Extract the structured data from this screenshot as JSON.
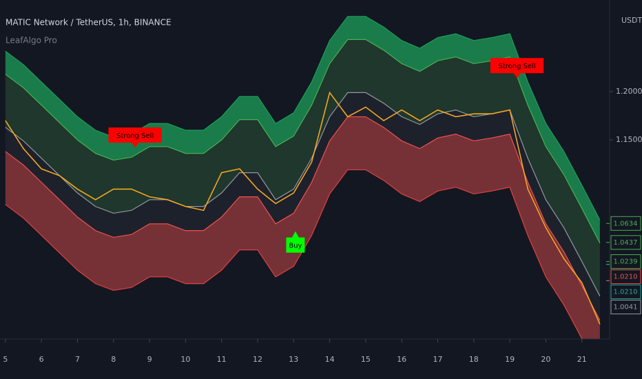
{
  "chart_data": {
    "type": "band-line",
    "title": "MATIC Network / TetherUS, 1h, BINANCE",
    "subtitle": "LeafAlgo Pro",
    "y_axis_label": "USDT",
    "x": [
      5,
      5.5,
      6,
      6.5,
      7,
      7.5,
      8,
      8.5,
      9,
      9.5,
      10,
      10.5,
      11,
      11.5,
      12,
      12.5,
      13,
      13.5,
      14,
      14.5,
      15,
      15.5,
      16,
      16.5,
      17,
      17.5,
      18,
      18.5,
      19,
      19.5,
      20,
      20.5,
      21,
      21.5
    ],
    "xlim": [
      4.85,
      21.77
    ],
    "xticks": [
      5,
      6,
      7,
      8,
      9,
      10,
      11,
      12,
      13,
      14,
      15,
      16,
      17,
      18,
      19,
      20,
      21
    ],
    "ylim": [
      0.9436,
      1.295
    ],
    "yticks": [
      {
        "value": 1.15,
        "label": "1.1500"
      },
      {
        "value": 1.2,
        "label": "1.2000"
      }
    ],
    "series": [
      {
        "color": "#1e9e5a",
        "values": [
          1.242,
          1.228,
          1.21,
          1.192,
          1.174,
          1.16,
          1.153,
          1.156,
          1.167,
          1.167,
          1.16,
          1.16,
          1.174,
          1.195,
          1.195,
          1.167,
          1.178,
          1.21,
          1.253,
          1.278,
          1.278,
          1.267,
          1.253,
          1.245,
          1.256,
          1.26,
          1.253,
          1.256,
          1.26,
          1.21,
          1.167,
          1.138,
          1.103,
          1.067
        ]
      },
      {
        "color": "#4caf50",
        "values": [
          1.218,
          1.204,
          1.186,
          1.168,
          1.15,
          1.136,
          1.129,
          1.132,
          1.143,
          1.143,
          1.136,
          1.136,
          1.15,
          1.171,
          1.171,
          1.143,
          1.154,
          1.186,
          1.229,
          1.254,
          1.254,
          1.243,
          1.229,
          1.221,
          1.232,
          1.236,
          1.229,
          1.232,
          1.236,
          1.186,
          1.143,
          1.114,
          1.079,
          1.043
        ]
      },
      {
        "color": "#9598a1",
        "values": [
          1.163,
          1.149,
          1.131,
          1.113,
          1.095,
          1.081,
          1.074,
          1.077,
          1.088,
          1.088,
          1.081,
          1.081,
          1.095,
          1.116,
          1.116,
          1.088,
          1.099,
          1.131,
          1.174,
          1.199,
          1.199,
          1.188,
          1.174,
          1.166,
          1.177,
          1.181,
          1.174,
          1.177,
          1.181,
          1.131,
          1.088,
          1.059,
          1.024,
          0.988
        ]
      },
      {
        "color": "#ef5350",
        "values": [
          1.138,
          1.124,
          1.106,
          1.088,
          1.07,
          1.056,
          1.049,
          1.052,
          1.063,
          1.063,
          1.056,
          1.056,
          1.07,
          1.091,
          1.091,
          1.063,
          1.074,
          1.106,
          1.149,
          1.174,
          1.174,
          1.163,
          1.149,
          1.141,
          1.152,
          1.156,
          1.149,
          1.152,
          1.156,
          1.106,
          1.063,
          1.034,
          0.999,
          0.963
        ]
      },
      {
        "color": "#e04040",
        "values": [
          1.083,
          1.069,
          1.051,
          1.033,
          1.015,
          1.001,
          0.994,
          0.997,
          1.008,
          1.008,
          1.001,
          1.001,
          1.015,
          1.036,
          1.036,
          1.008,
          1.019,
          1.051,
          1.094,
          1.119,
          1.119,
          1.108,
          1.094,
          1.086,
          1.097,
          1.101,
          1.094,
          1.097,
          1.101,
          1.051,
          1.008,
          0.979,
          0.944,
          0.908
        ]
      },
      {
        "color": "#f5a623",
        "values": [
          1.17,
          1.141,
          1.12,
          1.113,
          1.099,
          1.088,
          1.099,
          1.099,
          1.091,
          1.088,
          1.081,
          1.077,
          1.116,
          1.12,
          1.099,
          1.084,
          1.095,
          1.127,
          1.199,
          1.174,
          1.184,
          1.17,
          1.181,
          1.17,
          1.181,
          1.174,
          1.177,
          1.177,
          1.181,
          1.099,
          1.059,
          1.027,
          1.002,
          0.959
        ]
      }
    ],
    "signals": [
      {
        "label": "Strong Sell",
        "x": 8.6,
        "y": 1.155,
        "color": "#ff0000"
      },
      {
        "label": "Buy",
        "x": 13.05,
        "y": 1.041,
        "color": "#00ff00"
      },
      {
        "label": "Strong Sell",
        "x": 19.2,
        "y": 1.227,
        "color": "#ff0000"
      }
    ],
    "price_tags": [
      {
        "value": 1.0634,
        "label": "1.0634",
        "color": "#4caf50"
      },
      {
        "value": 1.0437,
        "label": "1.0437",
        "color": "#4caf50"
      },
      {
        "value": 1.0239,
        "label": "1.0239",
        "color": "#4caf50"
      },
      {
        "value": 1.021,
        "label": "1.0210",
        "color": "#ef5350"
      },
      {
        "value": 1.021,
        "label": "1.0210",
        "color": "#26a69a"
      },
      {
        "value": 1.0041,
        "label": "1.0041",
        "color": "#9598a1"
      }
    ]
  }
}
